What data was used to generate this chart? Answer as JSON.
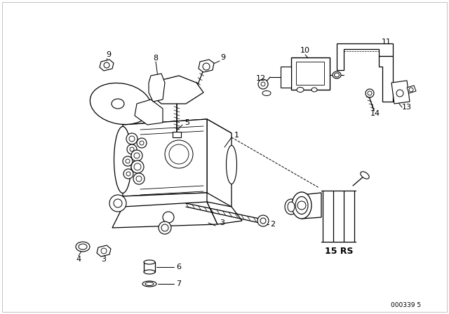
{
  "bg_color": "#ffffff",
  "line_color": "#000000",
  "part_number_code": "000339 5",
  "label_15RS": "15 RS",
  "figsize": [
    6.4,
    4.48
  ],
  "dpi": 100,
  "border_color": "#cccccc"
}
